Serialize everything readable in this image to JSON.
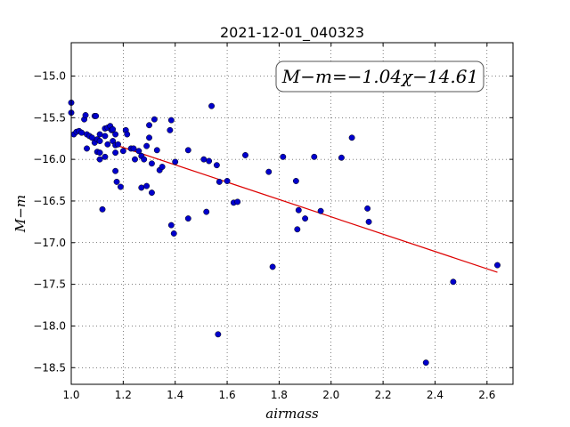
{
  "chart_data": {
    "type": "scatter",
    "title": "2021-12-01_040323",
    "xlabel": "airmass",
    "ylabel": "M−m",
    "xlim": [
      1.0,
      2.7
    ],
    "ylim": [
      -18.7,
      -14.6
    ],
    "y_inverted": true,
    "grid": true,
    "x_ticks": [
      1.0,
      1.2,
      1.4,
      1.6,
      1.8,
      2.0,
      2.2,
      2.4,
      2.6
    ],
    "x_tick_labels": [
      "1.0",
      "1.2",
      "1.4",
      "1.6",
      "1.8",
      "2.0",
      "2.2",
      "2.4",
      "2.6"
    ],
    "y_ticks": [
      -15.0,
      -15.5,
      -16.0,
      -16.5,
      -17.0,
      -17.5,
      -18.0,
      -18.5
    ],
    "y_tick_labels": [
      "−15.0",
      "−15.5",
      "−16.0",
      "−16.5",
      "−17.0",
      "−17.5",
      "−18.0",
      "−18.5"
    ],
    "annotation": "M−m=−1.04χ−14.61",
    "fit": {
      "slope": -1.04,
      "intercept": -14.61,
      "x_range": [
        1.18,
        2.64
      ],
      "color": "#dd0000"
    },
    "marker_color": "#0000cc",
    "points": [
      [
        1.0,
        -15.32
      ],
      [
        1.0,
        -15.44
      ],
      [
        1.01,
        -15.7
      ],
      [
        1.02,
        -15.67
      ],
      [
        1.03,
        -15.66
      ],
      [
        1.04,
        -15.68
      ],
      [
        1.05,
        -15.52
      ],
      [
        1.055,
        -15.47
      ],
      [
        1.06,
        -15.7
      ],
      [
        1.06,
        -15.87
      ],
      [
        1.07,
        -15.72
      ],
      [
        1.08,
        -15.74
      ],
      [
        1.09,
        -15.8
      ],
      [
        1.09,
        -15.48
      ],
      [
        1.095,
        -15.48
      ],
      [
        1.1,
        -15.76
      ],
      [
        1.1,
        -15.91
      ],
      [
        1.11,
        -15.92
      ],
      [
        1.11,
        -15.7
      ],
      [
        1.11,
        -15.78
      ],
      [
        1.11,
        -16.0
      ],
      [
        1.12,
        -16.6
      ],
      [
        1.13,
        -15.72
      ],
      [
        1.13,
        -15.97
      ],
      [
        1.13,
        -15.63
      ],
      [
        1.14,
        -15.62
      ],
      [
        1.14,
        -15.82
      ],
      [
        1.15,
        -15.6
      ],
      [
        1.155,
        -15.65
      ],
      [
        1.16,
        -15.64
      ],
      [
        1.16,
        -15.78
      ],
      [
        1.17,
        -15.7
      ],
      [
        1.17,
        -15.83
      ],
      [
        1.17,
        -15.92
      ],
      [
        1.17,
        -16.14
      ],
      [
        1.175,
        -16.27
      ],
      [
        1.18,
        -15.82
      ],
      [
        1.19,
        -16.33
      ],
      [
        1.2,
        -15.9
      ],
      [
        1.21,
        -15.65
      ],
      [
        1.215,
        -15.7
      ],
      [
        1.23,
        -15.87
      ],
      [
        1.24,
        -15.87
      ],
      [
        1.245,
        -16.0
      ],
      [
        1.26,
        -15.9
      ],
      [
        1.27,
        -15.96
      ],
      [
        1.27,
        -16.34
      ],
      [
        1.28,
        -16.0
      ],
      [
        1.29,
        -15.84
      ],
      [
        1.29,
        -16.32
      ],
      [
        1.3,
        -15.59
      ],
      [
        1.3,
        -15.74
      ],
      [
        1.31,
        -16.05
      ],
      [
        1.31,
        -16.4
      ],
      [
        1.32,
        -15.52
      ],
      [
        1.33,
        -15.89
      ],
      [
        1.34,
        -16.13
      ],
      [
        1.35,
        -16.09
      ],
      [
        1.38,
        -15.65
      ],
      [
        1.385,
        -15.53
      ],
      [
        1.385,
        -16.79
      ],
      [
        1.395,
        -16.89
      ],
      [
        1.4,
        -16.03
      ],
      [
        1.45,
        -15.89
      ],
      [
        1.45,
        -16.71
      ],
      [
        1.51,
        -16.0
      ],
      [
        1.52,
        -16.63
      ],
      [
        1.53,
        -16.02
      ],
      [
        1.54,
        -15.36
      ],
      [
        1.56,
        -16.07
      ],
      [
        1.565,
        -18.1
      ],
      [
        1.57,
        -16.27
      ],
      [
        1.6,
        -16.26
      ],
      [
        1.625,
        -16.52
      ],
      [
        1.64,
        -16.51
      ],
      [
        1.67,
        -15.95
      ],
      [
        1.76,
        -16.15
      ],
      [
        1.775,
        -17.29
      ],
      [
        1.815,
        -15.97
      ],
      [
        1.865,
        -16.26
      ],
      [
        1.87,
        -16.84
      ],
      [
        1.875,
        -16.61
      ],
      [
        1.9,
        -16.71
      ],
      [
        1.935,
        -15.97
      ],
      [
        1.96,
        -16.62
      ],
      [
        2.04,
        -15.98
      ],
      [
        2.08,
        -15.74
      ],
      [
        2.14,
        -16.59
      ],
      [
        2.145,
        -16.75
      ],
      [
        2.365,
        -18.44
      ],
      [
        2.47,
        -17.47
      ],
      [
        2.64,
        -17.27
      ]
    ]
  }
}
